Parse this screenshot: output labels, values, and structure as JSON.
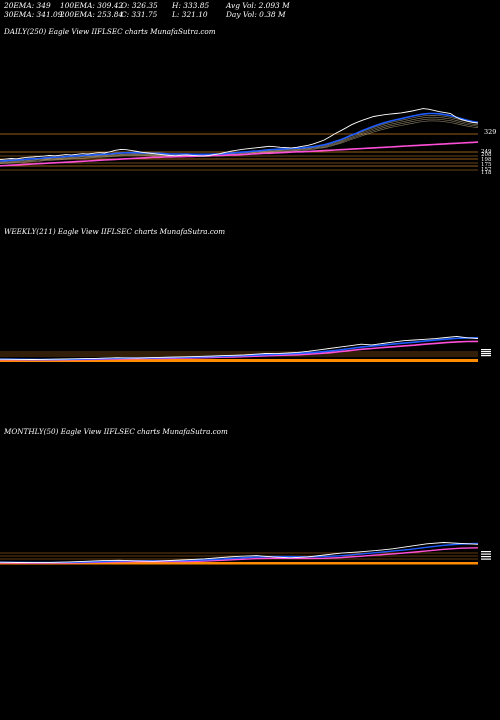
{
  "stats": {
    "row1": {
      "ema20": "20EMA: 349",
      "ema100": "100EMA: 309.42",
      "open": "O: 326.35",
      "high": "H: 333.85",
      "avg_vol": "Avg Vol: 2.093  M"
    },
    "row2": {
      "ema30": "30EMA: 341.09",
      "ema200": "200EMA: 253.84",
      "close": "C: 331.75",
      "low": "L: 321.10",
      "day_vol": "Day Vol: 0.38  M"
    }
  },
  "panels": {
    "daily": {
      "title": "DAILY(250) Eagle   View  IIFLSEC charts MunafaSutra.com"
    },
    "weekly": {
      "title": "WEEKLY(211) Eagle   View  IIFLSEC charts MunafaSutra.com"
    },
    "monthly": {
      "title": "MONTHLY(50) Eagle   View  IIFLSEC charts MunafaSutra.com"
    }
  },
  "colors": {
    "background": "#000000",
    "price": "#ffffff",
    "ema_fast": "#1f5cff",
    "ema_slow": "#ff4fd8",
    "ema_other": "#c8b890",
    "level_line": "#c87a1e",
    "volume": "#ff8c00"
  },
  "chart_data": [
    {
      "type": "line",
      "title": "DAILY(250) Eagle   View  IIFLSEC charts MunafaSutra.com",
      "right_tick_labels": [
        "329",
        "249",
        "208",
        "198",
        "175",
        "157",
        "118"
      ],
      "series": [
        {
          "name": "",
          "role": "price",
          "values": [
            210,
            212,
            214,
            213,
            216,
            218,
            219,
            221,
            222,
            224,
            223,
            225,
            227,
            226,
            228,
            230,
            229,
            231,
            233,
            232,
            236,
            241,
            244,
            243,
            240,
            237,
            234,
            232,
            230,
            228,
            226,
            224,
            223,
            225,
            226,
            224,
            223,
            222,
            224,
            227,
            230,
            234,
            238,
            241,
            244,
            246,
            248,
            250,
            252,
            254,
            253,
            251,
            250,
            249,
            251,
            254,
            257,
            262,
            268,
            275,
            285,
            296,
            305,
            315,
            325,
            333,
            340,
            346,
            352,
            355,
            358,
            360,
            362,
            364,
            367,
            370,
            374,
            378,
            376,
            372,
            368,
            365,
            362,
            350,
            342,
            337,
            333,
            331
          ]
        },
        {
          "name": "",
          "role": "ema-fast",
          "values": [
            206,
            207,
            208,
            209,
            210,
            212,
            213,
            214,
            216,
            217,
            218,
            219,
            221,
            222,
            223,
            224,
            225,
            226,
            227,
            228,
            229,
            231,
            232,
            233,
            233,
            233,
            232,
            232,
            231,
            231,
            230,
            229,
            229,
            229,
            229,
            228,
            228,
            228,
            228,
            229,
            229,
            230,
            232,
            233,
            235,
            236,
            238,
            239,
            241,
            243,
            244,
            245,
            246,
            247,
            248,
            249,
            251,
            253,
            256,
            259,
            264,
            270,
            276,
            283,
            291,
            298,
            306,
            313,
            320,
            326,
            332,
            337,
            341,
            345,
            349,
            353,
            357,
            360,
            362,
            362,
            361,
            358,
            355,
            350,
            345,
            340,
            336,
            333
          ]
        },
        {
          "name": "",
          "role": "ema-slow",
          "values": [
            190,
            191,
            192,
            193,
            194,
            195,
            196,
            197,
            198,
            199,
            200,
            201,
            202,
            203,
            204,
            205,
            206,
            207,
            208,
            209,
            210,
            211,
            212,
            213,
            214,
            215,
            216,
            217,
            218,
            218,
            219,
            219,
            220,
            220,
            221,
            221,
            222,
            223,
            223,
            224,
            224,
            225,
            226,
            226,
            227,
            228,
            229,
            230,
            231,
            231,
            232,
            233,
            234,
            235,
            236,
            236,
            237,
            238,
            239,
            240,
            241,
            242,
            243,
            244,
            245,
            246,
            247,
            248,
            249,
            250,
            251,
            252,
            253,
            254,
            255,
            256,
            257,
            258,
            259,
            260,
            261,
            262,
            263,
            264,
            265,
            266,
            267,
            268
          ]
        }
      ]
    },
    {
      "type": "line",
      "title": "WEEKLY(211) Eagle   View  IIFLSEC charts MunafaSutra.com",
      "series": [
        {
          "name": "",
          "role": "price",
          "values": [
            40,
            38,
            36,
            35,
            37,
            40,
            42,
            45,
            48,
            50,
            55,
            60,
            58,
            56,
            60,
            65,
            68,
            72,
            75,
            80,
            85,
            90,
            95,
            100,
            110,
            120,
            118,
            125,
            135,
            150,
            170,
            190,
            210,
            230,
            250,
            240,
            260,
            280,
            300,
            310,
            320,
            330,
            345,
            360,
            340,
            331
          ]
        }
      ]
    },
    {
      "type": "line",
      "title": "MONTHLY(50) Eagle   View  IIFLSEC charts MunafaSutra.com",
      "series": [
        {
          "name": "",
          "role": "price",
          "values": [
            45,
            40,
            38,
            42,
            50,
            60,
            70,
            75,
            65,
            60,
            72,
            85,
            100,
            120,
            140,
            150,
            130,
            115,
            130,
            160,
            190,
            210,
            230,
            260,
            300,
            340,
            360,
            345,
            331
          ]
        }
      ]
    }
  ]
}
